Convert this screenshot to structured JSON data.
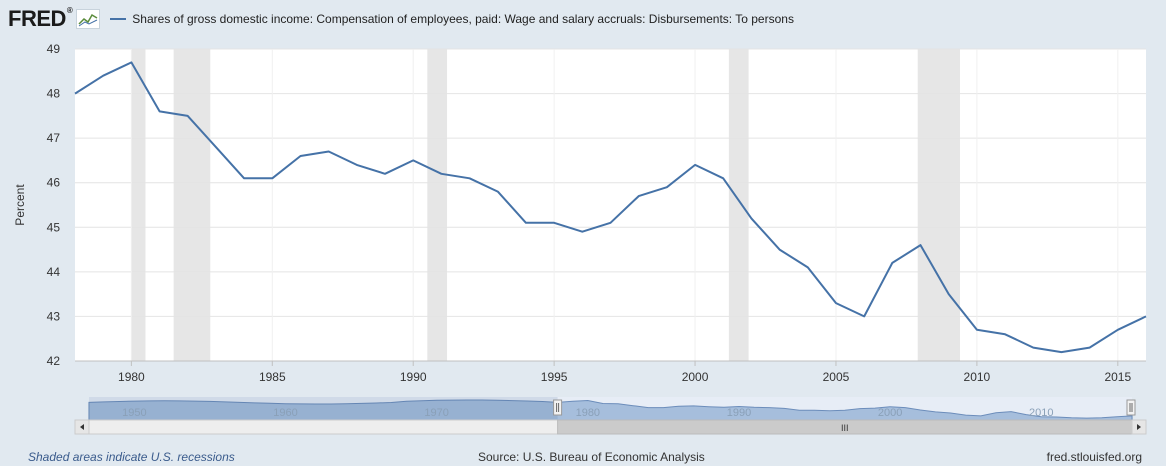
{
  "header": {
    "logo_text": "FRED",
    "logo_mark": "®",
    "series_title": "Shares of gross domestic income: Compensation of employees, paid: Wage and salary accruals: Disbursements: To persons"
  },
  "chart_data": {
    "type": "line",
    "title": "Shares of gross domestic income: Compensation of employees, paid: Wage and salary accruals: Disbursements: To persons",
    "ylabel": "Percent",
    "xlabel": "",
    "xlim": [
      1978,
      2016
    ],
    "ylim": [
      42,
      49
    ],
    "yticks": [
      42,
      43,
      44,
      45,
      46,
      47,
      48,
      49
    ],
    "xticks": [
      1980,
      1985,
      1990,
      1995,
      2000,
      2005,
      2010,
      2015
    ],
    "grid": true,
    "series": [
      {
        "color": "#4572a7",
        "x": [
          1978,
          1979,
          1980,
          1981,
          1982,
          1983,
          1984,
          1985,
          1986,
          1987,
          1988,
          1989,
          1990,
          1991,
          1992,
          1993,
          1994,
          1995,
          1996,
          1997,
          1998,
          1999,
          2000,
          2001,
          2002,
          2003,
          2004,
          2005,
          2006,
          2007,
          2008,
          2009,
          2010,
          2011,
          2012,
          2013,
          2014,
          2015,
          2016
        ],
        "y": [
          48.0,
          48.4,
          48.7,
          47.6,
          47.5,
          46.8,
          46.1,
          46.1,
          46.6,
          46.7,
          46.4,
          46.2,
          46.5,
          46.2,
          46.1,
          45.8,
          45.1,
          45.1,
          44.9,
          45.1,
          45.7,
          45.9,
          46.4,
          46.1,
          45.2,
          44.5,
          44.1,
          43.3,
          43.0,
          44.2,
          44.6,
          43.5,
          42.7,
          42.6,
          42.3,
          42.2,
          42.3,
          42.7,
          43.0
        ]
      }
    ],
    "recessions": [
      [
        1980.0,
        1980.5
      ],
      [
        1981.5,
        1982.8
      ],
      [
        1990.5,
        1991.2
      ],
      [
        2001.2,
        2001.9
      ],
      [
        2007.9,
        2009.4
      ]
    ],
    "navigator": {
      "tick_labels": [
        "1950",
        "1960",
        "1970",
        "1980",
        "1990",
        "2000",
        "2010"
      ],
      "tick_years": [
        1950,
        1960,
        1970,
        1980,
        1990,
        2000,
        2010
      ],
      "range_years": [
        1947,
        2016
      ],
      "selected_range": [
        1978,
        2016
      ],
      "scroll_grip": "III"
    }
  },
  "footer": {
    "recession_note": "Shaded areas indicate U.S. recessions",
    "source": "Source: U.S. Bureau of Economic Analysis",
    "site": "fred.stlouisfed.org"
  },
  "colors": {
    "background": "#e1e9f0",
    "plot": "#ffffff",
    "line": "#4572a7",
    "recession": "#e6e6e6"
  }
}
